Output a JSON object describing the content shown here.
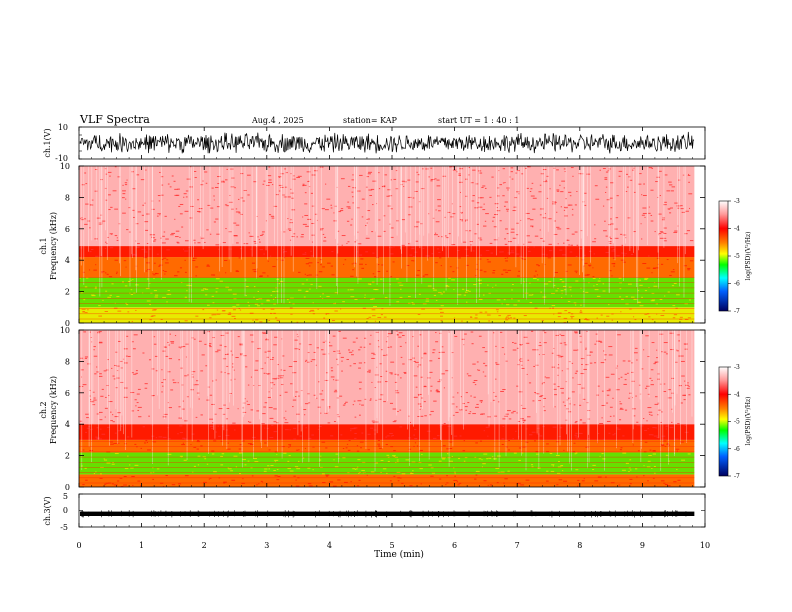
{
  "header": {
    "title": "VLF Spectra",
    "date": "Aug.4 , 2025",
    "station": "station= KAP",
    "start": "start UT = 1 : 40 : 1"
  },
  "colors": {
    "noise_light": "#ffb0b0",
    "noise": "#ff3030",
    "band_red": "#ff1a00",
    "band_orange": "#ff6a00",
    "band_yellow": "#e8ea00",
    "band_green": "#66e000",
    "trace": "#000000"
  },
  "chart_data": [
    {
      "type": "line",
      "name": "ch1-waveform",
      "ylabel": "ch.1(V)",
      "ylim": [
        -10,
        10
      ],
      "yticks": [
        "10",
        "-10"
      ],
      "xlim": [
        0,
        10
      ],
      "description_series": "noisy voltage trace spanning roughly -6..+6 V"
    },
    {
      "type": "heatmap",
      "name": "ch1-spectrogram",
      "ylabel": "ch.1\nFrequency (kHz)",
      "ylim": [
        0,
        10
      ],
      "yticks": [
        "0",
        "2",
        "4",
        "6",
        "8",
        "10"
      ],
      "xlim": [
        0,
        9.83
      ],
      "bands_khz": [
        {
          "lo": 0,
          "hi": 1.0,
          "level": "yellow-green"
        },
        {
          "lo": 1.0,
          "hi": 2.9,
          "level": "green-yellow"
        },
        {
          "lo": 2.9,
          "hi": 4.2,
          "level": "orange"
        },
        {
          "lo": 4.2,
          "hi": 4.9,
          "level": "red"
        },
        {
          "lo": 4.9,
          "hi": 10,
          "level": "light-red-noise"
        }
      ],
      "colorbar": {
        "label": "log(PSD)(V²/Hz)",
        "ticks": [
          "-3",
          "-4",
          "-5",
          "-6",
          "-7"
        ],
        "range": [
          -7,
          -3
        ]
      }
    },
    {
      "type": "heatmap",
      "name": "ch2-spectrogram",
      "ylabel": "ch.2\nFrequency (kHz)",
      "ylim": [
        0,
        10
      ],
      "yticks": [
        "0",
        "2",
        "4",
        "6",
        "8",
        "10"
      ],
      "xlim": [
        0,
        9.83
      ],
      "bands_khz": [
        {
          "lo": 0,
          "hi": 0.8,
          "level": "orange"
        },
        {
          "lo": 0.8,
          "hi": 2.2,
          "level": "green-yellow"
        },
        {
          "lo": 2.2,
          "hi": 3.0,
          "level": "orange"
        },
        {
          "lo": 3.0,
          "hi": 4.0,
          "level": "red"
        },
        {
          "lo": 4.0,
          "hi": 10,
          "level": "light-red-noise"
        }
      ],
      "colorbar": {
        "label": "log(PSD)(V²/Hz)",
        "ticks": [
          "-3",
          "-4",
          "-5",
          "-6",
          "-7"
        ],
        "range": [
          -7,
          -3
        ]
      }
    },
    {
      "type": "line",
      "name": "ch3-waveform",
      "ylabel": "ch.3(V)",
      "ylim": [
        -5,
        5
      ],
      "yticks": [
        "5",
        "0",
        "-5"
      ],
      "xlim": [
        0,
        10
      ],
      "description_series": "near-constant level around -1 V"
    }
  ],
  "xaxis": {
    "label": "Time (min)",
    "ticks": [
      "0",
      "1",
      "2",
      "3",
      "4",
      "5",
      "6",
      "7",
      "8",
      "9",
      "10"
    ],
    "range": [
      0,
      10
    ]
  }
}
